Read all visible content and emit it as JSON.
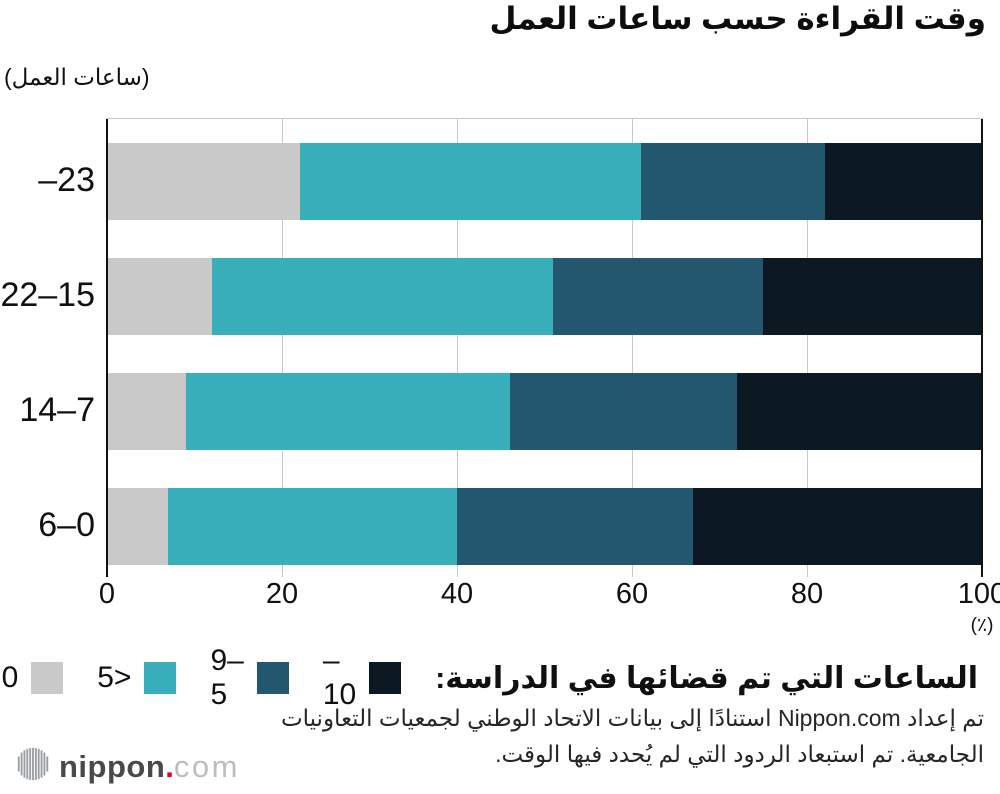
{
  "chart_data": {
    "type": "bar",
    "variant": "horizontal-stacked",
    "title": "وقت القراءة حسب ساعات العمل",
    "y_axis_unit": "(ساعات العمل)",
    "x_axis_unit": "(٪)",
    "xlim": [
      0,
      100
    ],
    "xticks": [
      0,
      20,
      40,
      60,
      80,
      100
    ],
    "grid": true,
    "categories": [
      "–23",
      "22–15",
      "14–7",
      "6–0"
    ],
    "legend_title": "الساعات التي تم قضائها في الدراسة:",
    "legend_position": "bottom",
    "series": [
      {
        "name": "0",
        "color": "#c9c9c9",
        "values": [
          22,
          12,
          9,
          7
        ]
      },
      {
        "name": "5>",
        "color": "#39afbc",
        "values": [
          39,
          39,
          37,
          33
        ]
      },
      {
        "name": "9–5",
        "color": "#235770",
        "values": [
          21,
          24,
          26,
          27
        ]
      },
      {
        "name": "–10",
        "color": "#0c1822",
        "values": [
          18,
          25,
          28,
          33
        ]
      }
    ]
  },
  "footer": {
    "line1": "تم إعداد Nippon.com استنادًا إلى بيانات الاتحاد الوطني لجمعيات التعاونيات",
    "line2": "الجامعية. تم استبعاد الردود التي لم يُحدد فيها الوقت."
  },
  "logo": {
    "word_bold": "nippon",
    "dot": ".",
    "word_light": "com",
    "dot_color": "#e60012"
  },
  "colors": {
    "grid": "#c8c8c8",
    "axis": "#111111",
    "text": "#101010"
  }
}
